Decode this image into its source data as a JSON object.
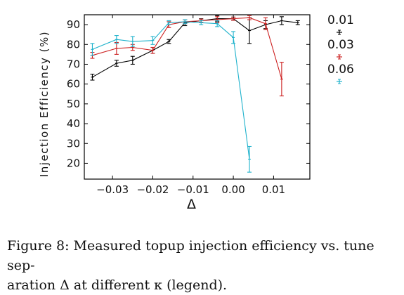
{
  "caption": {
    "line1": "Figure 8: Measured topup injection efficiency vs. tune sep-",
    "line2": "aration Δ at different κ (legend)."
  },
  "chart_data": {
    "type": "line",
    "xlabel": "Δ",
    "ylabel": "Injection Efficiency (%)",
    "xlim": [
      -0.037,
      0.019
    ],
    "ylim": [
      12,
      95
    ],
    "xticks": [
      -0.03,
      -0.02,
      -0.01,
      0.0,
      0.01
    ],
    "xtick_labels": [
      "−0.03",
      "−0.02",
      "−0.01",
      "0.00",
      "0.01"
    ],
    "yticks": [
      20,
      30,
      40,
      50,
      60,
      70,
      80,
      90
    ],
    "ytick_labels": [
      "20",
      "30",
      "40",
      "50",
      "60",
      "70",
      "80",
      "90"
    ],
    "legend_position": "right",
    "series": [
      {
        "name": "0.01",
        "color": "#000000",
        "points": [
          {
            "x": -0.035,
            "y": 63.5,
            "err": 1.5
          },
          {
            "x": -0.029,
            "y": 70.5,
            "err": 1.5
          },
          {
            "x": -0.025,
            "y": 72.0,
            "err": 2.0
          },
          {
            "x": -0.02,
            "y": 77.0,
            "err": 1.5
          },
          {
            "x": -0.016,
            "y": 81.5,
            "err": 1.0
          },
          {
            "x": -0.012,
            "y": 91.0,
            "err": 1.5
          },
          {
            "x": -0.008,
            "y": 92.0,
            "err": 1.0
          },
          {
            "x": -0.004,
            "y": 93.0,
            "err": 1.5
          },
          {
            "x": 0.0,
            "y": 93.0,
            "err": 0.8
          },
          {
            "x": 0.004,
            "y": 87.0,
            "err": 6.5
          },
          {
            "x": 0.008,
            "y": 90.0,
            "err": 2.0
          },
          {
            "x": 0.012,
            "y": 92.0,
            "err": 2.0
          },
          {
            "x": 0.016,
            "y": 91.0,
            "err": 1.0
          }
        ]
      },
      {
        "name": "0.03",
        "color": "#cc1f1f",
        "points": [
          {
            "x": -0.035,
            "y": 74.5,
            "err": 1.5
          },
          {
            "x": -0.029,
            "y": 78.0,
            "err": 3.0
          },
          {
            "x": -0.025,
            "y": 78.5,
            "err": 1.5
          },
          {
            "x": -0.02,
            "y": 77.0,
            "err": 1.5
          },
          {
            "x": -0.016,
            "y": 90.0,
            "err": 1.5
          },
          {
            "x": -0.012,
            "y": 91.5,
            "err": 1.0
          },
          {
            "x": -0.008,
            "y": 92.0,
            "err": 0.8
          },
          {
            "x": -0.004,
            "y": 92.5,
            "err": 1.5
          },
          {
            "x": 0.0,
            "y": 93.0,
            "err": 0.8
          },
          {
            "x": 0.004,
            "y": 93.5,
            "err": 1.0
          },
          {
            "x": 0.008,
            "y": 90.5,
            "err": 3.0
          },
          {
            "x": 0.012,
            "y": 62.5,
            "err": 8.5
          }
        ]
      },
      {
        "name": "0.06",
        "color": "#1fb2cc",
        "points": [
          {
            "x": -0.035,
            "y": 77.5,
            "err": 3.0
          },
          {
            "x": -0.029,
            "y": 82.5,
            "err": 2.0
          },
          {
            "x": -0.025,
            "y": 81.5,
            "err": 2.5
          },
          {
            "x": -0.02,
            "y": 82.0,
            "err": 2.0
          },
          {
            "x": -0.016,
            "y": 91.0,
            "err": 1.0
          },
          {
            "x": -0.012,
            "y": 91.5,
            "err": 1.0
          },
          {
            "x": -0.008,
            "y": 91.0,
            "err": 1.0
          },
          {
            "x": -0.004,
            "y": 90.5,
            "err": 1.5
          },
          {
            "x": 0.0,
            "y": 83.5,
            "err": 3.0
          },
          {
            "x": 0.004,
            "y": 22.0,
            "err": 6.5
          }
        ]
      }
    ]
  }
}
